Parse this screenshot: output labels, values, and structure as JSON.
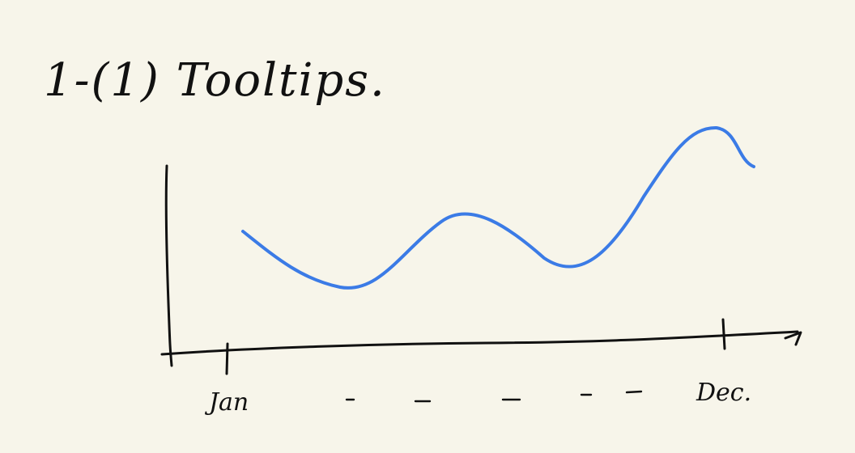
{
  "title": "1-(1) Tooltips.",
  "chart_data": {
    "type": "line",
    "xlabel": "",
    "ylabel": "",
    "tick_labels": {
      "start": "Jan",
      "end": "Dec."
    },
    "series_color": "#3b7be6",
    "axis_color": "#111111",
    "background": "#f7f5ea"
  }
}
